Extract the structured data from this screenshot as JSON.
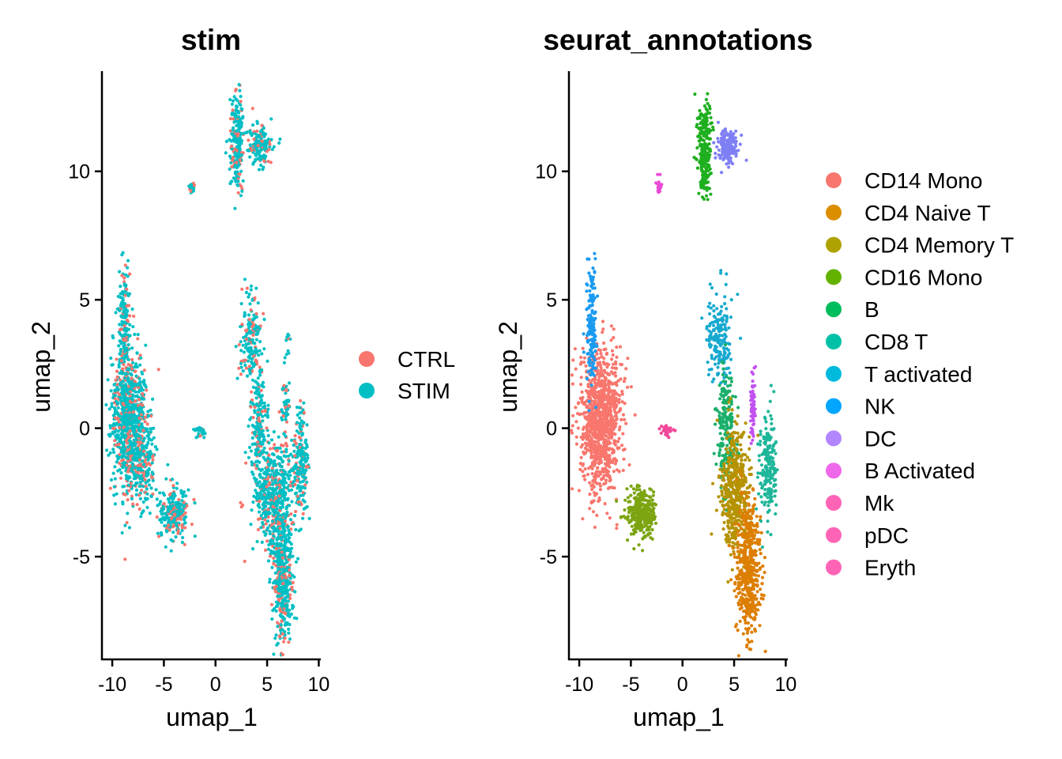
{
  "chart_data": [
    {
      "type": "scatter",
      "title": "stim",
      "xlabel": "umap_1",
      "ylabel": "umap_2",
      "xlim": [
        -11,
        10.2
      ],
      "ylim": [
        -9,
        13.9
      ],
      "x_ticks": [
        "-10",
        "-5",
        "0",
        "5",
        "10"
      ],
      "y_ticks": [
        "-5",
        "0",
        "5",
        "10"
      ],
      "grid": false,
      "legend_position": "right",
      "series": [
        {
          "name": "CTRL",
          "color": "#F8766D"
        },
        {
          "name": "STIM",
          "color": "#00BFC4"
        }
      ],
      "clusters": [
        {
          "cx": -8.3,
          "cy": 0.3,
          "sx": 0.9,
          "sy": 1.4,
          "n": 900
        },
        {
          "cx": -8.8,
          "cy": 4.0,
          "sx": 0.25,
          "sy": 1.3,
          "n": 160
        },
        {
          "cx": -7.0,
          "cy": -1.5,
          "sx": 0.7,
          "sy": 0.8,
          "n": 150
        },
        {
          "cx": -4.0,
          "cy": -3.3,
          "sx": 0.7,
          "sy": 0.5,
          "n": 260
        },
        {
          "cx": -2.3,
          "cy": 9.4,
          "sx": 0.15,
          "sy": 0.15,
          "n": 25
        },
        {
          "cx": -1.5,
          "cy": -0.1,
          "sx": 0.3,
          "sy": 0.1,
          "n": 25
        },
        {
          "cx": 2.1,
          "cy": 11.0,
          "sx": 0.35,
          "sy": 0.9,
          "n": 220
        },
        {
          "cx": 4.3,
          "cy": 11.0,
          "sx": 0.6,
          "sy": 0.4,
          "n": 160
        },
        {
          "cx": 3.5,
          "cy": 3.5,
          "sx": 0.6,
          "sy": 0.8,
          "n": 160
        },
        {
          "cx": 4.2,
          "cy": 0.3,
          "sx": 0.4,
          "sy": 1.2,
          "n": 200
        },
        {
          "cx": 5.6,
          "cy": -2.6,
          "sx": 0.9,
          "sy": 1.0,
          "n": 500
        },
        {
          "cx": 6.5,
          "cy": -5.8,
          "sx": 0.5,
          "sy": 1.3,
          "n": 450
        },
        {
          "cx": 8.3,
          "cy": -1.5,
          "sx": 0.4,
          "sy": 1.1,
          "n": 200
        },
        {
          "cx": 6.8,
          "cy": 0.8,
          "sx": 0.2,
          "sy": 0.7,
          "n": 60
        },
        {
          "cx": 7.0,
          "cy": 3.2,
          "sx": 0.1,
          "sy": 0.3,
          "n": 10
        }
      ]
    },
    {
      "type": "scatter",
      "title": "seurat_annotations",
      "xlabel": "umap_1",
      "ylabel": "umap_2",
      "xlim": [
        -11,
        10.2
      ],
      "ylim": [
        -9,
        13.9
      ],
      "x_ticks": [
        "-10",
        "-5",
        "0",
        "5",
        "10"
      ],
      "y_ticks": [
        "-5",
        "0",
        "5",
        "10"
      ],
      "grid": false,
      "legend_position": "right",
      "series": [
        {
          "name": "CD14 Mono",
          "color": "#F8766D"
        },
        {
          "name": "CD4 Naive T",
          "color": "#DB8E00"
        },
        {
          "name": "CD4 Memory T",
          "color": "#AEA200"
        },
        {
          "name": "CD16 Mono",
          "color": "#64B200"
        },
        {
          "name": "B",
          "color": "#00BD5C"
        },
        {
          "name": "CD8 T",
          "color": "#00C1A7"
        },
        {
          "name": "T activated",
          "color": "#00BADE"
        },
        {
          "name": "NK",
          "color": "#00A6FF"
        },
        {
          "name": "DC",
          "color": "#B385FF"
        },
        {
          "name": "B Activated",
          "color": "#EF67EB"
        },
        {
          "name": "Mk",
          "color": "#FF63B6"
        },
        {
          "name": "pDC",
          "color": "#FF63B6"
        },
        {
          "name": "Eryth",
          "color": "#FF63B6"
        }
      ],
      "clusters": [
        {
          "label": "CD14 Mono",
          "color": "#F8766D",
          "cx": -7.9,
          "cy": 0.3,
          "sx": 1.0,
          "sy": 1.3,
          "n": 1000
        },
        {
          "label": "DC",
          "color": "#1A9BF0",
          "cx": -8.8,
          "cy": 3.8,
          "sx": 0.25,
          "sy": 1.3,
          "n": 160
        },
        {
          "label": "CD16 Mono",
          "color": "#7CA411",
          "cx": -4.0,
          "cy": -3.3,
          "sx": 0.7,
          "sy": 0.5,
          "n": 280
        },
        {
          "label": "B",
          "color": "#1EAF1E",
          "cx": 2.1,
          "cy": 10.9,
          "sx": 0.35,
          "sy": 0.9,
          "n": 240
        },
        {
          "label": "B Activated",
          "color": "#7F7FF5",
          "cx": 4.3,
          "cy": 11.0,
          "sx": 0.5,
          "sy": 0.35,
          "n": 160
        },
        {
          "label": "pDC",
          "color": "#E94BD8",
          "cx": -2.3,
          "cy": 9.4,
          "sx": 0.15,
          "sy": 0.15,
          "n": 25
        },
        {
          "label": "Eryth",
          "color": "#F2479A",
          "cx": -1.5,
          "cy": -0.1,
          "sx": 0.3,
          "sy": 0.1,
          "n": 25
        },
        {
          "label": "NK",
          "color": "#17A9CF",
          "cx": 3.6,
          "cy": 3.5,
          "sx": 0.6,
          "sy": 0.8,
          "n": 180
        },
        {
          "label": "CD8 T",
          "color": "#1AAF6A",
          "cx": 4.2,
          "cy": 0.0,
          "sx": 0.4,
          "sy": 1.2,
          "n": 220
        },
        {
          "label": "CD4 Memory T",
          "color": "#B59200",
          "cx": 5.1,
          "cy": -2.4,
          "sx": 0.7,
          "sy": 1.1,
          "n": 450
        },
        {
          "label": "CD4 Naive T",
          "color": "#DC7E00",
          "cx": 6.4,
          "cy": -5.4,
          "sx": 0.6,
          "sy": 1.4,
          "n": 500
        },
        {
          "label": "T activated",
          "color": "#1EB69A",
          "cx": 8.3,
          "cy": -1.4,
          "sx": 0.4,
          "sy": 1.0,
          "n": 200
        },
        {
          "label": "Mk",
          "color": "#C152F0",
          "cx": 6.8,
          "cy": 0.8,
          "sx": 0.15,
          "sy": 0.7,
          "n": 60
        }
      ]
    }
  ]
}
